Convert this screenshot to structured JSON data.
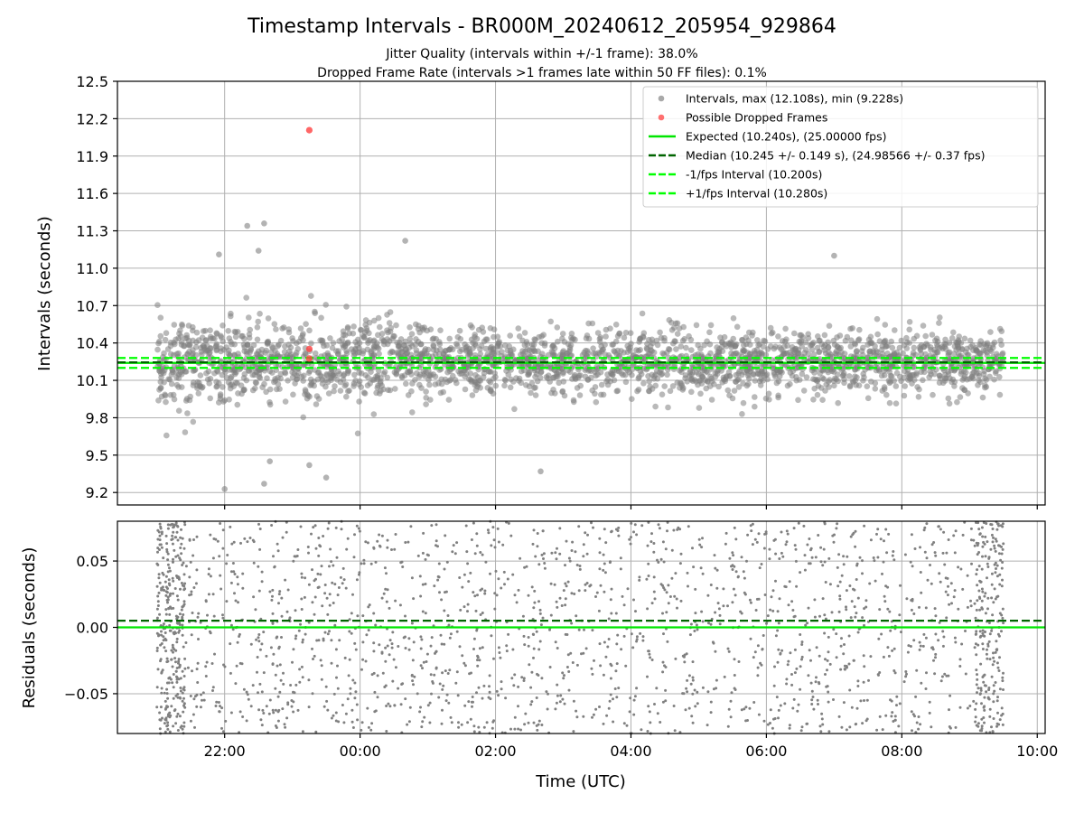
{
  "title": "Timestamp Intervals - BR000M_20240612_205954_929864",
  "subtitle_lines": [
    "Jitter Quality (intervals within +/-1 frame): 38.0%",
    "Dropped Frame Rate (intervals >1 frames late within 50 FF files): 0.1%"
  ],
  "colors": {
    "points": "#808080",
    "dropped": "#ff4040",
    "expected": "#00e600",
    "median": "#006400",
    "fps_bounds": "#00ff00",
    "grid": "#b0b0b0"
  },
  "chart_data": [
    {
      "type": "scatter",
      "ylabel": "Intervals (seconds)",
      "ylim": [
        9.1,
        12.5
      ],
      "yticks": [
        "9.2",
        "9.5",
        "9.8",
        "10.1",
        "10.4",
        "10.7",
        "11.0",
        "11.3",
        "11.6",
        "11.9",
        "12.2",
        "12.5"
      ],
      "xlim": [
        "20:25",
        "10:07"
      ],
      "grid": true,
      "legend_position": "top-right",
      "legend": [
        {
          "label": "Intervals, max (12.108s), min (9.228s)",
          "kind": "point",
          "color": "#a0a0a0"
        },
        {
          "label": "Possible Dropped Frames",
          "kind": "point",
          "color": "#ff6060"
        },
        {
          "label": "Expected (10.240s), (25.00000 fps)",
          "kind": "solid",
          "color": "#00e600"
        },
        {
          "label": "Median (10.245 +/- 0.149 s), (24.98566 +/- 0.37 fps)",
          "kind": "dashed",
          "color": "#006400"
        },
        {
          "label": "-1/fps Interval (10.200s)",
          "kind": "dashed",
          "color": "#00ff00"
        },
        {
          "label": "+1/fps Interval (10.280s)",
          "kind": "dashed",
          "color": "#00ff00"
        }
      ],
      "series": [
        {
          "name": "Intervals",
          "x_range": [
            "21:00",
            "09:30"
          ],
          "max": 12.108,
          "min": 9.228,
          "median": 10.245,
          "std": 0.149
        },
        {
          "name": "Possible Dropped Frames",
          "points": [
            [
              "23:15",
              12.108
            ],
            [
              "23:15",
              10.352
            ],
            [
              "23:15",
              10.275
            ]
          ]
        }
      ],
      "hlines": [
        {
          "name": "Expected",
          "y": 10.24,
          "style": "solid"
        },
        {
          "name": "Median",
          "y": 10.245,
          "style": "dashed"
        },
        {
          "name": "-1/fps Interval",
          "y": 10.2,
          "style": "dashed"
        },
        {
          "name": "+1/fps Interval",
          "y": 10.28,
          "style": "dashed"
        }
      ],
      "notable_points": [
        [
          "21:55",
          11.11
        ],
        [
          "22:20",
          11.34
        ],
        [
          "22:35",
          11.36
        ],
        [
          "22:30",
          11.14
        ],
        [
          "00:40",
          11.22
        ],
        [
          "07:00",
          11.1
        ],
        [
          "22:00",
          9.228
        ],
        [
          "22:35",
          9.27
        ],
        [
          "22:40",
          9.45
        ],
        [
          "23:15",
          9.42
        ],
        [
          "23:30",
          9.32
        ],
        [
          "02:40",
          9.37
        ]
      ]
    },
    {
      "type": "scatter",
      "xlabel": "Time (UTC)",
      "ylabel": "Residuals (seconds)",
      "ylim": [
        -0.08,
        0.08
      ],
      "yticks": [
        "−0.05",
        "0.00",
        "0.05"
      ],
      "xticks": [
        "22:00",
        "00:00",
        "02:00",
        "04:00",
        "06:00",
        "08:00",
        "10:00"
      ],
      "xlim": [
        "20:25",
        "10:07"
      ],
      "grid": true,
      "hlines": [
        {
          "name": "Expected",
          "y": 0.0,
          "style": "solid"
        },
        {
          "name": "Median",
          "y": 0.005,
          "style": "dashed"
        }
      ],
      "series": [
        {
          "name": "Residuals",
          "x_range": [
            "21:00",
            "09:30"
          ],
          "y_range": [
            -0.08,
            0.08
          ]
        }
      ]
    }
  ]
}
